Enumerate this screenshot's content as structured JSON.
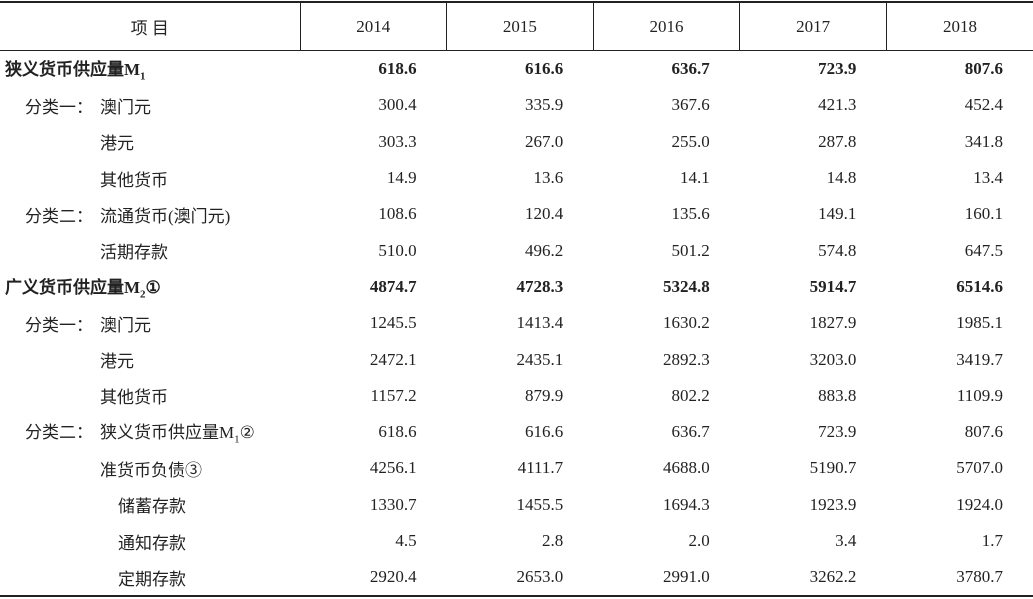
{
  "table": {
    "header": [
      "项 目",
      "2014",
      "2015",
      "2016",
      "2017",
      "2018"
    ],
    "rows": [
      {
        "label": "狭义货币供应量M",
        "label_sub": "1",
        "values": [
          "618.6",
          "616.6",
          "636.7",
          "723.9",
          "807.6"
        ]
      },
      {
        "group": "分类一：",
        "label": "澳门元",
        "values": [
          "300.4",
          "335.9",
          "367.6",
          "421.3",
          "452.4"
        ]
      },
      {
        "label": "港元",
        "values": [
          "303.3",
          "267.0",
          "255.0",
          "287.8",
          "341.8"
        ]
      },
      {
        "label": "其他货币",
        "values": [
          "14.9",
          "13.6",
          "14.1",
          "14.8",
          "13.4"
        ]
      },
      {
        "group": "分类二：",
        "label": "流通货币(澳门元)",
        "values": [
          "108.6",
          "120.4",
          "135.6",
          "149.1",
          "160.1"
        ]
      },
      {
        "label": "活期存款",
        "values": [
          "510.0",
          "496.2",
          "501.2",
          "574.8",
          "647.5"
        ]
      },
      {
        "label": "广义货币供应量M",
        "label_sub": "2",
        "label_note": "①",
        "values": [
          "4874.7",
          "4728.3",
          "5324.8",
          "5914.7",
          "6514.6"
        ]
      },
      {
        "group": "分类一：",
        "label": "澳门元",
        "values": [
          "1245.5",
          "1413.4",
          "1630.2",
          "1827.9",
          "1985.1"
        ]
      },
      {
        "label": "港元",
        "values": [
          "2472.1",
          "2435.1",
          "2892.3",
          "3203.0",
          "3419.7"
        ]
      },
      {
        "label": "其他货币",
        "values": [
          "1157.2",
          "879.9",
          "802.2",
          "883.8",
          "1109.9"
        ]
      },
      {
        "group": "分类二：",
        "label": "狭义货币供应量M",
        "label_sub": "1",
        "label_note": "②",
        "values": [
          "618.6",
          "616.6",
          "636.7",
          "723.9",
          "807.6"
        ]
      },
      {
        "label": "准货币负债③",
        "values": [
          "4256.1",
          "4111.7",
          "4688.0",
          "5190.7",
          "5707.0"
        ]
      },
      {
        "label": "储蓄存款",
        "values": [
          "1330.7",
          "1455.5",
          "1694.3",
          "1923.9",
          "1924.0"
        ]
      },
      {
        "label": "通知存款",
        "values": [
          "4.5",
          "2.8",
          "2.0",
          "3.4",
          "1.7"
        ]
      },
      {
        "label": "定期存款",
        "values": [
          "2920.4",
          "2653.0",
          "2991.0",
          "3262.2",
          "3780.7"
        ]
      }
    ]
  }
}
